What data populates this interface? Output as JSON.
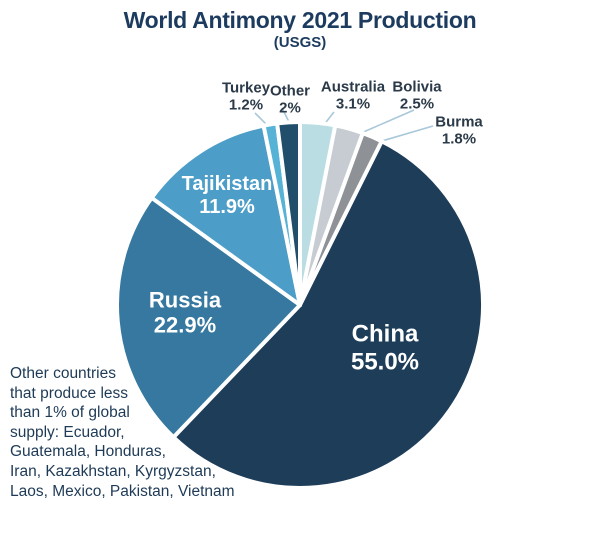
{
  "header": {
    "title": "World Antimony 2021 Production",
    "subtitle": "(USGS)"
  },
  "chart_data": {
    "type": "pie",
    "title": "World Antimony 2021 Production",
    "subtitle": "(USGS)",
    "source": "USGS",
    "start_angle_deg": 0,
    "direction": "clockwise",
    "legend": "none (direct slice labels)",
    "annotation": "Other countries\nthat produce less\nthan 1% of global\nsupply: Ecuador,\nGuatemala, Honduras,\nIran, Kazakhstan, Kyrgyzstan,\nLaos, Mexico, Pakistan, Vietnam",
    "slices": [
      {
        "label": "Australia",
        "value": 3.1,
        "pct_label": "3.1%",
        "color": "#b9dde2",
        "label_placement": "outside"
      },
      {
        "label": "Bolivia",
        "value": 2.5,
        "pct_label": "2.5%",
        "color": "#c6ccd1",
        "label_placement": "outside"
      },
      {
        "label": "Burma",
        "value": 1.8,
        "pct_label": "1.8%",
        "color": "#8e9195",
        "label_placement": "outside"
      },
      {
        "label": "China",
        "value": 55.0,
        "pct_label": "55.0%",
        "color": "#1d3d59",
        "label_placement": "inside"
      },
      {
        "label": "Russia",
        "value": 22.9,
        "pct_label": "22.9%",
        "color": "#36789f",
        "label_placement": "inside"
      },
      {
        "label": "Tajikistan",
        "value": 11.9,
        "pct_label": "11.9%",
        "color": "#4c9dc7",
        "label_placement": "inside"
      },
      {
        "label": "Turkey",
        "value": 1.2,
        "pct_label": "1.2%",
        "color": "#57b3d6",
        "label_placement": "outside"
      },
      {
        "label": "Other",
        "value": 2.0,
        "pct_label": "2%",
        "color": "#204e6b",
        "label_placement": "outside"
      }
    ],
    "colors": {
      "title_text": "#1c3b5f",
      "outside_label_text": "#2b3a48",
      "inside_label_text": "#ffffff",
      "leader_line": "#a9c8da",
      "background": "#ffffff"
    }
  }
}
